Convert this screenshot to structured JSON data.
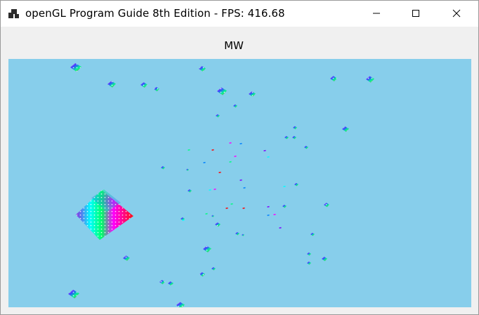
{
  "window": {
    "title": "openGL Program Guide 8th Edition - FPS: 416.68",
    "app_icon": "windows-app-icon",
    "controls": {
      "minimize_icon": "minimize-icon",
      "maximize_icon": "maximize-icon",
      "close_icon": "close-icon"
    }
  },
  "client": {
    "label": "MW"
  },
  "viewport": {
    "background_color": "#87ceeb",
    "object_colors": [
      "#ff00ff",
      "#0080ff",
      "#00ff80",
      "#ff0000",
      "#8000ff",
      "#00ffff"
    ]
  }
}
